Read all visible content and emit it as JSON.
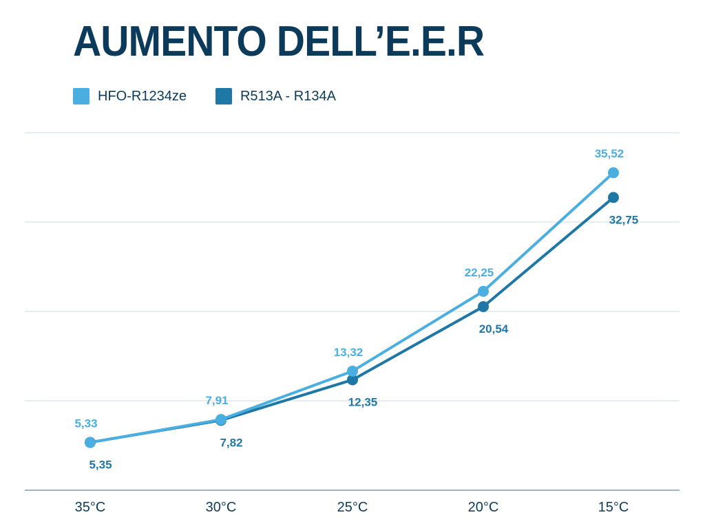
{
  "title": "AUMENTO DELL’E.E.R",
  "legend": [
    {
      "label": "HFO-R1234ze",
      "color": "#4aaee0"
    },
    {
      "label": "R513A - R134A",
      "color": "#1f77a6"
    }
  ],
  "colors": {
    "title": "#0c3a5a",
    "grid": "#dde5ea",
    "axis": "#9fb3c0"
  },
  "chart_data": {
    "type": "line",
    "title": "AUMENTO DELL’E.E.R",
    "xlabel": "",
    "ylabel": "",
    "categories": [
      "35°C",
      "30°C",
      "25°C",
      "20°C",
      "15°C"
    ],
    "series": [
      {
        "name": "HFO-R1234ze",
        "values": [
          5.33,
          7.91,
          13.32,
          22.25,
          35.52
        ],
        "labels": [
          "5,33",
          "7,91",
          "13,32",
          "22,25",
          "35,52"
        ],
        "color": "#4aaee0"
      },
      {
        "name": "R513A - R134A",
        "values": [
          5.35,
          7.82,
          12.35,
          20.54,
          32.75
        ],
        "labels": [
          "5,35",
          "7,82",
          "12,35",
          "20,54",
          "32,75"
        ],
        "color": "#1f77a6"
      }
    ],
    "ylim": [
      0,
      40
    ],
    "grid": true,
    "gridlines": [
      10,
      20,
      30,
      40
    ],
    "y_tick_labels_visible": false,
    "legend_position": "top-left"
  }
}
